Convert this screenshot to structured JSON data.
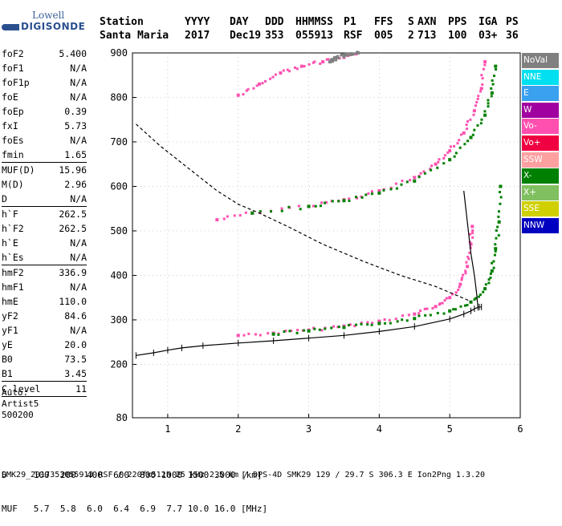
{
  "logo": {
    "line1": "Lowell",
    "line2": "DIGISONDE"
  },
  "header": {
    "labels": [
      {
        "text": "Station"
      },
      {
        "text": "YYYY"
      },
      {
        "text": "DAY"
      },
      {
        "text": "DDD"
      },
      {
        "text": "HHMMSS"
      },
      {
        "text": "P1"
      },
      {
        "text": "FFS"
      },
      {
        "text": "S"
      },
      {
        "text": "AXN"
      },
      {
        "text": "PPS"
      },
      {
        "text": "IGA"
      },
      {
        "text": "PS"
      }
    ],
    "values": [
      {
        "text": "Santa Maria"
      },
      {
        "text": "2017"
      },
      {
        "text": "Dec19"
      },
      {
        "text": "353"
      },
      {
        "text": "055913"
      },
      {
        "text": "RSF"
      },
      {
        "text": "005"
      },
      {
        "text": "2"
      },
      {
        "text": "713"
      },
      {
        "text": "100"
      },
      {
        "text": "03+"
      },
      {
        "text": "36"
      }
    ]
  },
  "params": [
    {
      "k": "foF2",
      "v": "5.400"
    },
    {
      "k": "foF1",
      "v": "N/A"
    },
    {
      "k": "foF1p",
      "v": "N/A"
    },
    {
      "k": "foE",
      "v": "N/A"
    },
    {
      "k": "foEp",
      "v": "0.39"
    },
    {
      "k": "fxI",
      "v": "5.73"
    },
    {
      "k": "foEs",
      "v": "N/A"
    },
    {
      "k": "fmin",
      "v": "1.65"
    },
    {
      "sep": true
    },
    {
      "k": "MUF(D)",
      "v": "15.96"
    },
    {
      "k": "M(D)",
      "v": "2.96"
    },
    {
      "k": "D",
      "v": "N/A"
    },
    {
      "sep": true
    },
    {
      "k": "h`F",
      "v": "262.5"
    },
    {
      "k": "h`F2",
      "v": "262.5"
    },
    {
      "k": "h`E",
      "v": "N/A"
    },
    {
      "k": "h`Es",
      "v": "N/A"
    },
    {
      "sep": true
    },
    {
      "k": "hmF2",
      "v": "336.9"
    },
    {
      "k": "hmF1",
      "v": "N/A"
    },
    {
      "k": "hmE",
      "v": "110.0"
    },
    {
      "k": "yF2",
      "v": "84.6"
    },
    {
      "k": "yF1",
      "v": "N/A"
    },
    {
      "k": "yE",
      "v": "20.0"
    },
    {
      "k": "B0",
      "v": "73.5"
    },
    {
      "k": "B1",
      "v": "3.45"
    },
    {
      "sep": true
    },
    {
      "k": "C-level",
      "v": "11"
    },
    {
      "sep": true
    }
  ],
  "auto": [
    "Auto:",
    "Artist5",
    "500200"
  ],
  "legend": [
    {
      "label": "NoVal",
      "color": "#808080"
    },
    {
      "label": "NNE",
      "color": "#00e0f0"
    },
    {
      "label": "E",
      "color": "#3aa0f0"
    },
    {
      "label": "W",
      "color": "#a000a0"
    },
    {
      "label": "Vo-",
      "color": "#ff50b0"
    },
    {
      "label": "Vo+",
      "color": "#f00040"
    },
    {
      "label": "SSW",
      "color": "#ffa0a0"
    },
    {
      "label": "X-",
      "color": "#008000"
    },
    {
      "label": "X+",
      "color": "#80c060"
    },
    {
      "label": "SSE",
      "color": "#d0d000"
    },
    {
      "label": "NNW",
      "color": "#0000c0"
    }
  ],
  "bottom": {
    "row1": "D     100  200  400  600  800 1000 1500 3000 [km]",
    "row2": "MUF   5.7  5.8  6.0  6.4  6.9  7.7 10.0 16.0 [MHz]"
  },
  "footer": "SMK29_2017353055913.RSF / 220fx512h 25 kHz 2.5 km / DPS-4D SMK29 129 / 29.7 S 306.3 E Ion2Png 1.3.20",
  "chart_data": {
    "type": "scatter",
    "x_label": "",
    "y_label": "",
    "xlim": [
      0.5,
      6.0
    ],
    "ylim": [
      80,
      900
    ],
    "x_ticks": [
      1,
      2,
      3,
      4,
      5,
      6
    ],
    "y_ticks": [
      80,
      200,
      300,
      400,
      500,
      600,
      700,
      800,
      900
    ],
    "series": [
      {
        "name": "Vo-",
        "color": "#ff50b0",
        "x": [
          2.0,
          2.5,
          3.0,
          3.5,
          4.0,
          4.5,
          4.8,
          5.0,
          5.15,
          5.25,
          5.3,
          5.32
        ],
        "y": [
          265,
          270,
          277,
          286,
          297,
          313,
          330,
          350,
          380,
          420,
          470,
          510
        ]
      },
      {
        "name": "X-",
        "color": "#008000",
        "x": [
          2.5,
          3.0,
          3.5,
          4.0,
          4.5,
          5.0,
          5.3,
          5.5,
          5.6,
          5.65,
          5.7,
          5.72
        ],
        "y": [
          268,
          275,
          283,
          292,
          303,
          320,
          340,
          370,
          410,
          460,
          520,
          600
        ]
      },
      {
        "name": "Vo- (2F)",
        "color": "#ff50b0",
        "x": [
          1.7,
          2.2,
          3.0,
          3.5,
          4.0,
          4.5,
          4.8,
          5.0,
          5.2,
          5.35,
          5.45,
          5.5
        ],
        "y": [
          525,
          540,
          555,
          570,
          590,
          620,
          650,
          680,
          720,
          770,
          820,
          880
        ]
      },
      {
        "name": "X- (2F)",
        "color": "#008000",
        "x": [
          2.2,
          3.0,
          3.5,
          4.0,
          4.5,
          5.0,
          5.3,
          5.5,
          5.6,
          5.65
        ],
        "y": [
          540,
          555,
          568,
          585,
          612,
          660,
          710,
          760,
          810,
          870
        ]
      },
      {
        "name": "Vo- (3F)",
        "color": "#ff50b0",
        "x": [
          2.0,
          2.3,
          2.6,
          2.9,
          3.2,
          3.5,
          3.7
        ],
        "y": [
          805,
          830,
          855,
          870,
          880,
          890,
          900
        ]
      },
      {
        "name": "NoVal",
        "color": "#808080",
        "x": [
          3.3,
          3.35,
          3.4,
          3.5,
          3.6,
          3.7
        ],
        "y": [
          880,
          885,
          890,
          895,
          898,
          900
        ]
      }
    ],
    "curves": [
      {
        "name": "trace",
        "style": "solid-ticks",
        "x": [
          0.55,
          0.8,
          1.0,
          1.2,
          1.5,
          2.0,
          2.5,
          3.0,
          3.5,
          4.0,
          4.5,
          5.0,
          5.2,
          5.3,
          5.35,
          5.4,
          5.42,
          5.45
        ],
        "y": [
          220,
          226,
          232,
          237,
          242,
          248,
          253,
          259,
          265,
          274,
          285,
          302,
          313,
          320,
          325,
          328,
          329,
          329
        ]
      },
      {
        "name": "profile",
        "style": "solid",
        "x": [
          5.4,
          5.38,
          5.35,
          5.3,
          5.25,
          5.2
        ],
        "y": [
          329,
          360,
          400,
          450,
          520,
          590
        ]
      },
      {
        "name": "MUF",
        "style": "dashed",
        "x": [
          0.55,
          0.9,
          1.3,
          1.7,
          2.0,
          2.3,
          2.7,
          3.2,
          3.8,
          4.3,
          4.8,
          5.1,
          5.25,
          5.3
        ],
        "y": [
          740,
          690,
          640,
          590,
          560,
          540,
          510,
          470,
          430,
          400,
          375,
          355,
          345,
          340
        ]
      }
    ]
  }
}
